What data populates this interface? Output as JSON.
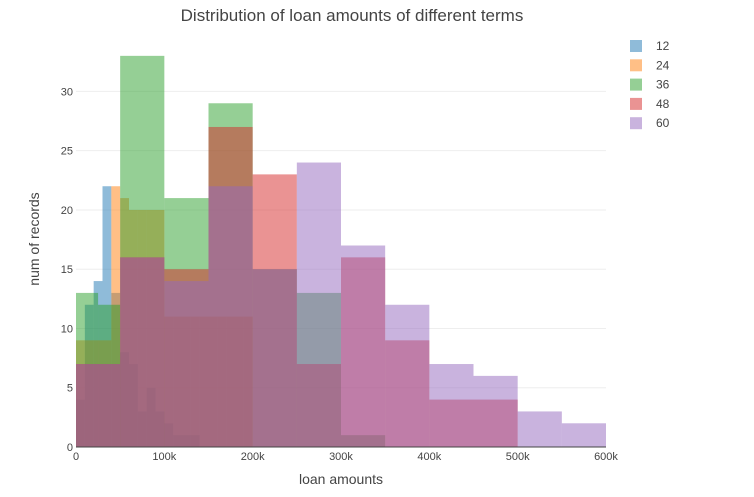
{
  "chart_data": {
    "type": "histogram",
    "title": "Distribution of loan amounts of different terms",
    "xlabel": "loan amounts",
    "ylabel": "num of records",
    "xlim": [
      0,
      600000
    ],
    "ylim": [
      0,
      34
    ],
    "x_ticks": [
      {
        "value": 0,
        "label": "0"
      },
      {
        "value": 100000,
        "label": "100k"
      },
      {
        "value": 200000,
        "label": "200k"
      },
      {
        "value": 300000,
        "label": "300k"
      },
      {
        "value": 400000,
        "label": "400k"
      },
      {
        "value": 500000,
        "label": "500k"
      },
      {
        "value": 600000,
        "label": "600k"
      }
    ],
    "y_ticks": [
      {
        "value": 0,
        "label": "0"
      },
      {
        "value": 5,
        "label": "5"
      },
      {
        "value": 10,
        "label": "10"
      },
      {
        "value": 15,
        "label": "15"
      },
      {
        "value": 20,
        "label": "20"
      },
      {
        "value": 25,
        "label": "25"
      },
      {
        "value": 30,
        "label": "30"
      }
    ],
    "grid": true,
    "legend_position": "top-right",
    "series": [
      {
        "name": "12",
        "color": "#1f77b4",
        "bins": [
          {
            "x0": 0,
            "x1": 10000,
            "y": 4
          },
          {
            "x0": 10000,
            "x1": 20000,
            "y": 12
          },
          {
            "x0": 20000,
            "x1": 30000,
            "y": 14
          },
          {
            "x0": 30000,
            "x1": 40000,
            "y": 22
          },
          {
            "x0": 40000,
            "x1": 50000,
            "y": 13
          },
          {
            "x0": 50000,
            "x1": 60000,
            "y": 8
          },
          {
            "x0": 60000,
            "x1": 70000,
            "y": 7
          },
          {
            "x0": 70000,
            "x1": 80000,
            "y": 3
          },
          {
            "x0": 80000,
            "x1": 90000,
            "y": 5
          },
          {
            "x0": 90000,
            "x1": 100000,
            "y": 3
          },
          {
            "x0": 100000,
            "x1": 110000,
            "y": 2
          },
          {
            "x0": 110000,
            "x1": 120000,
            "y": 1
          },
          {
            "x0": 120000,
            "x1": 130000,
            "y": 1
          },
          {
            "x0": 130000,
            "x1": 140000,
            "y": 1
          }
        ]
      },
      {
        "name": "24",
        "color": "#ff7f0e",
        "bins": [
          {
            "x0": 0,
            "x1": 10000,
            "y": 9
          },
          {
            "x0": 10000,
            "x1": 20000,
            "y": 9
          },
          {
            "x0": 20000,
            "x1": 30000,
            "y": 9
          },
          {
            "x0": 30000,
            "x1": 40000,
            "y": 9
          },
          {
            "x0": 40000,
            "x1": 50000,
            "y": 22
          },
          {
            "x0": 50000,
            "x1": 60000,
            "y": 21
          },
          {
            "x0": 60000,
            "x1": 70000,
            "y": 20
          },
          {
            "x0": 70000,
            "x1": 80000,
            "y": 20
          },
          {
            "x0": 80000,
            "x1": 90000,
            "y": 20
          },
          {
            "x0": 90000,
            "x1": 100000,
            "y": 20
          },
          {
            "x0": 100000,
            "x1": 110000,
            "y": 11
          },
          {
            "x0": 110000,
            "x1": 120000,
            "y": 11
          },
          {
            "x0": 120000,
            "x1": 130000,
            "y": 11
          },
          {
            "x0": 130000,
            "x1": 140000,
            "y": 11
          },
          {
            "x0": 140000,
            "x1": 150000,
            "y": 11
          },
          {
            "x0": 150000,
            "x1": 160000,
            "y": 11
          },
          {
            "x0": 160000,
            "x1": 170000,
            "y": 11
          },
          {
            "x0": 170000,
            "x1": 180000,
            "y": 11
          },
          {
            "x0": 180000,
            "x1": 190000,
            "y": 11
          },
          {
            "x0": 190000,
            "x1": 200000,
            "y": 11
          }
        ]
      },
      {
        "name": "36",
        "color": "#2ca02c",
        "bins": [
          {
            "x0": 0,
            "x1": 25000,
            "y": 13
          },
          {
            "x0": 25000,
            "x1": 50000,
            "y": 12
          },
          {
            "x0": 50000,
            "x1": 100000,
            "y": 33
          },
          {
            "x0": 100000,
            "x1": 150000,
            "y": 21
          },
          {
            "x0": 150000,
            "x1": 200000,
            "y": 29
          },
          {
            "x0": 200000,
            "x1": 250000,
            "y": 15
          },
          {
            "x0": 250000,
            "x1": 300000,
            "y": 13
          },
          {
            "x0": 300000,
            "x1": 350000,
            "y": 1
          }
        ]
      },
      {
        "name": "48",
        "color": "#d62728",
        "bins": [
          {
            "x0": 0,
            "x1": 50000,
            "y": 7
          },
          {
            "x0": 50000,
            "x1": 100000,
            "y": 16
          },
          {
            "x0": 100000,
            "x1": 150000,
            "y": 15
          },
          {
            "x0": 150000,
            "x1": 200000,
            "y": 27
          },
          {
            "x0": 200000,
            "x1": 250000,
            "y": 23
          },
          {
            "x0": 250000,
            "x1": 300000,
            "y": 7
          },
          {
            "x0": 300000,
            "x1": 350000,
            "y": 16
          },
          {
            "x0": 350000,
            "x1": 400000,
            "y": 9
          },
          {
            "x0": 400000,
            "x1": 450000,
            "y": 4
          },
          {
            "x0": 450000,
            "x1": 500000,
            "y": 4
          }
        ]
      },
      {
        "name": "60",
        "color": "#9467bd",
        "bins": [
          {
            "x0": 0,
            "x1": 50000,
            "y": 7
          },
          {
            "x0": 50000,
            "x1": 100000,
            "y": 16
          },
          {
            "x0": 100000,
            "x1": 150000,
            "y": 14
          },
          {
            "x0": 150000,
            "x1": 200000,
            "y": 22
          },
          {
            "x0": 200000,
            "x1": 250000,
            "y": 15
          },
          {
            "x0": 250000,
            "x1": 300000,
            "y": 24
          },
          {
            "x0": 300000,
            "x1": 350000,
            "y": 17
          },
          {
            "x0": 350000,
            "x1": 400000,
            "y": 12
          },
          {
            "x0": 400000,
            "x1": 450000,
            "y": 7
          },
          {
            "x0": 450000,
            "x1": 500000,
            "y": 6
          },
          {
            "x0": 500000,
            "x1": 550000,
            "y": 3
          },
          {
            "x0": 550000,
            "x1": 600000,
            "y": 2
          }
        ]
      }
    ]
  }
}
